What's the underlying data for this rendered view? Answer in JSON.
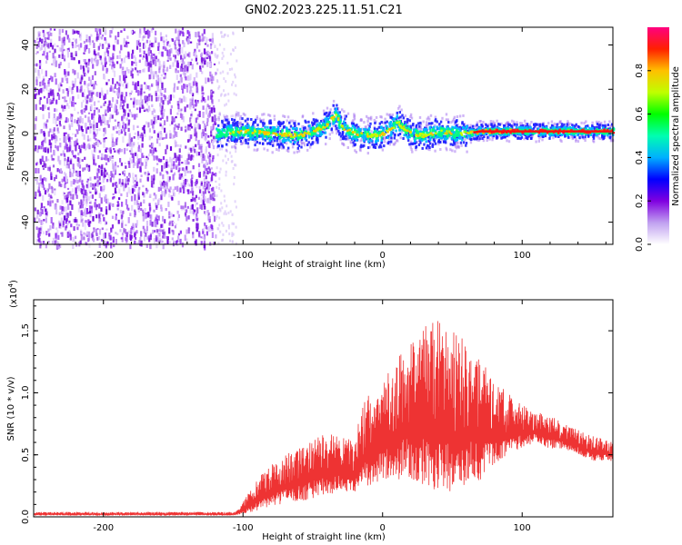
{
  "figure_title": "GN02.2023.225.11.51.C21",
  "chart_data": [
    {
      "type": "heatmap",
      "title": "GN02.2023.225.11.51.C21",
      "xlabel": "Height of straight line (km)",
      "ylabel": "Frequency (Hz)",
      "xlim": [
        -250,
        165
      ],
      "ylim": [
        -50,
        48
      ],
      "xticks": [
        -200,
        -100,
        0,
        100
      ],
      "yticks": [
        -40,
        -20,
        0,
        20,
        40
      ],
      "colorbar": {
        "label": "Normalized spectral amplitude",
        "range": [
          0,
          1
        ],
        "ticks": [
          0.0,
          0.2,
          0.4,
          0.6,
          0.8
        ],
        "tick_labels": [
          "0.0",
          "0.2",
          "0.4",
          "0.6",
          "0.8"
        ],
        "colormap": [
          "#ffffff",
          "#c0a0f0",
          "#8000e0",
          "#0000ff",
          "#00b0ff",
          "#00ffb0",
          "#00ff00",
          "#c0ff00",
          "#ffc000",
          "#ff2000",
          "#ff0080"
        ]
      },
      "regions": [
        {
          "name": "broadband noise",
          "x_range": [
            -250,
            -120
          ],
          "freq_range": [
            -50,
            48
          ]
        },
        {
          "name": "narrowband line",
          "x_range": [
            -120,
            165
          ],
          "center_hz": 0
        }
      ],
      "line_centerline": {
        "x": [
          -120,
          -100,
          -80,
          -60,
          -50,
          -40,
          -34,
          -30,
          -20,
          -10,
          0,
          5,
          10,
          15,
          20,
          30,
          40,
          50,
          60,
          70,
          80,
          100,
          120,
          140,
          165
        ],
        "y": [
          0,
          1,
          0,
          -1,
          1,
          4,
          9,
          3,
          0,
          -1,
          0,
          2,
          5,
          2,
          0,
          -1,
          1,
          0,
          0,
          1,
          1,
          1,
          1,
          1,
          1
        ]
      }
    },
    {
      "type": "line",
      "xlabel": "Height of straight line (km)",
      "ylabel": "SNR (10 * v/v)",
      "scale_label": "(x10",
      "scale_exponent": "4",
      "xlim": [
        -250,
        165
      ],
      "ylim": [
        0,
        1.75
      ],
      "xticks": [
        -200,
        -100,
        0,
        100
      ],
      "yticks": [
        0.0,
        0.5,
        1.0,
        1.5
      ],
      "ytick_labels": [
        "0.0",
        "0.5",
        "1.0",
        "1.5"
      ],
      "color": "#ee3333",
      "series": [
        {
          "name": "SNR envelope",
          "x": [
            -250,
            -200,
            -150,
            -105,
            -100,
            -90,
            -80,
            -70,
            -60,
            -50,
            -40,
            -30,
            -20,
            -15,
            -10,
            0,
            10,
            20,
            30,
            40,
            50,
            60,
            70,
            80,
            90,
            100,
            110,
            120,
            130,
            140,
            150,
            165
          ],
          "upper": [
            0.04,
            0.04,
            0.04,
            0.04,
            0.12,
            0.3,
            0.42,
            0.5,
            0.55,
            0.62,
            0.68,
            0.64,
            0.62,
            0.9,
            0.98,
            1.1,
            1.3,
            1.45,
            1.55,
            1.6,
            1.5,
            1.45,
            1.3,
            1.1,
            1.0,
            0.9,
            0.85,
            0.82,
            0.75,
            0.7,
            0.66,
            0.6
          ],
          "lower": [
            0.01,
            0.01,
            0.01,
            0.01,
            0.02,
            0.05,
            0.08,
            0.1,
            0.12,
            0.15,
            0.18,
            0.2,
            0.2,
            0.25,
            0.25,
            0.3,
            0.3,
            0.3,
            0.25,
            0.2,
            0.2,
            0.25,
            0.3,
            0.4,
            0.5,
            0.55,
            0.6,
            0.55,
            0.55,
            0.5,
            0.45,
            0.45
          ]
        }
      ]
    }
  ]
}
